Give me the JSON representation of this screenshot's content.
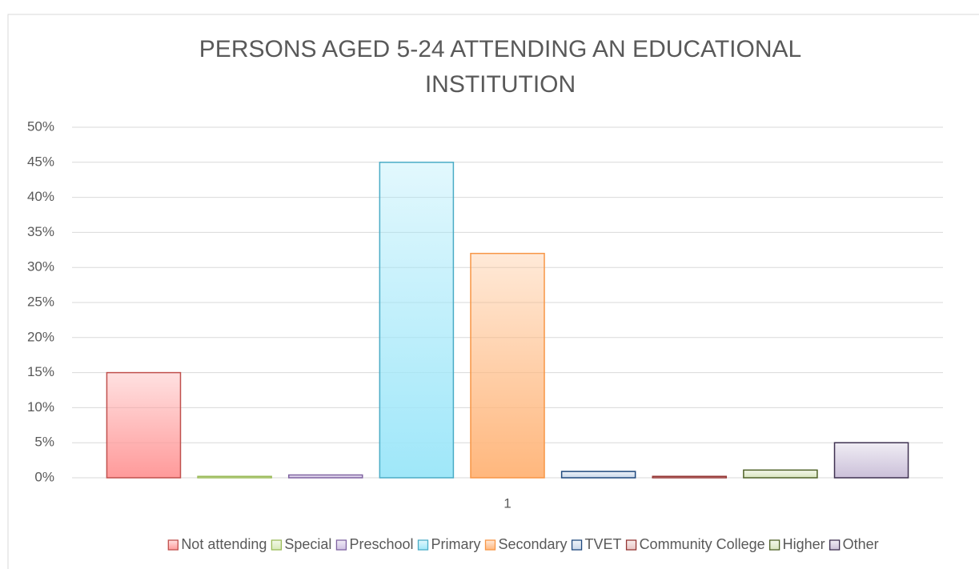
{
  "chart_data": {
    "type": "bar",
    "title": "PERSONS AGED 5-24 ATTENDING AN EDUCATIONAL INSTITUTION",
    "categories": [
      "1"
    ],
    "series": [
      {
        "name": "Not attending",
        "color": "#ff9a9a",
        "edge": "#c0504d",
        "values": [
          15
        ]
      },
      {
        "name": "Special",
        "color": "#d7eab8",
        "edge": "#9bbb59",
        "values": [
          0.2
        ]
      },
      {
        "name": "Preschool",
        "color": "#cfc0e3",
        "edge": "#8064a2",
        "values": [
          0.4
        ]
      },
      {
        "name": "Primary",
        "color": "#9fe7f9",
        "edge": "#4bacc6",
        "values": [
          45
        ]
      },
      {
        "name": "Secondary",
        "color": "#ffb77d",
        "edge": "#f79646",
        "values": [
          32
        ]
      },
      {
        "name": "TVET",
        "color": "#c9d7ea",
        "edge": "#1f497d",
        "values": [
          0.9
        ]
      },
      {
        "name": "Community College",
        "color": "#e8c4c3",
        "edge": "#953735",
        "values": [
          0.2
        ]
      },
      {
        "name": "Higher",
        "color": "#d8e5bf",
        "edge": "#4f6228",
        "values": [
          1.1
        ]
      },
      {
        "name": "Other",
        "color": "#cbc0d9",
        "edge": "#3f3151",
        "values": [
          5
        ]
      }
    ],
    "ylim": [
      0,
      50
    ],
    "yticks": [
      {
        "value": 0,
        "label": "0%"
      },
      {
        "value": 5,
        "label": "5%"
      },
      {
        "value": 10,
        "label": "10%"
      },
      {
        "value": 15,
        "label": "15%"
      },
      {
        "value": 20,
        "label": "20%"
      },
      {
        "value": 25,
        "label": "25%"
      },
      {
        "value": 30,
        "label": "30%"
      },
      {
        "value": 35,
        "label": "35%"
      },
      {
        "value": 40,
        "label": "40%"
      },
      {
        "value": 45,
        "label": "45%"
      },
      {
        "value": 50,
        "label": "50%"
      }
    ],
    "grid": true,
    "legend": "bottom"
  }
}
